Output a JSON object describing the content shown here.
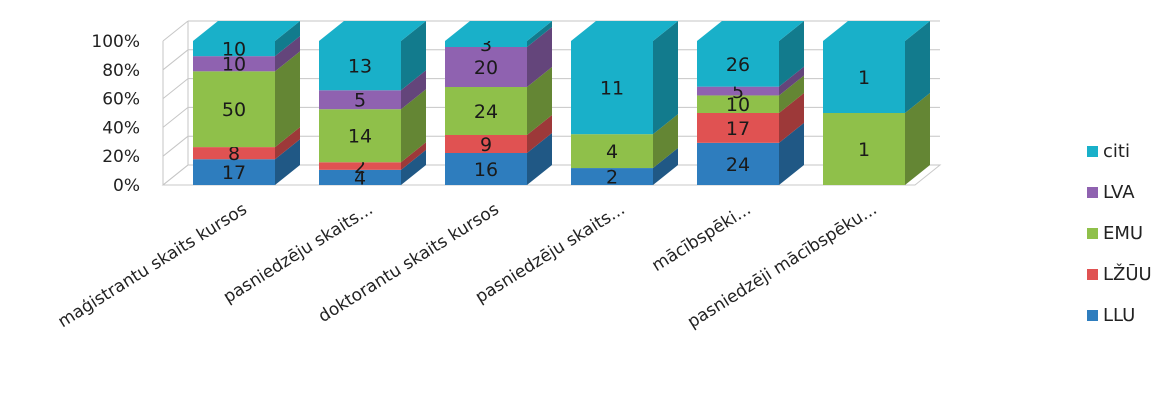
{
  "chart_data": {
    "type": "bar",
    "stacked": "percent",
    "three_d": true,
    "title": "",
    "xlabel": "",
    "ylabel": "",
    "ylim": [
      0,
      100
    ],
    "y_ticks": [
      "0%",
      "20%",
      "40%",
      "60%",
      "80%",
      "100%"
    ],
    "grid": true,
    "legend_position": "right",
    "categories": [
      "maģistrantu skaits kursos",
      "pasniedzēju skaits...",
      "doktorantu skaits kursos",
      "pasniedzēju skaits...",
      "mācībspēki...",
      "pasniedzēji mācībspēku..."
    ],
    "series": [
      {
        "name": "LLU",
        "color": "#2e7dbe",
        "values": [
          17,
          4,
          16,
          2,
          24,
          null
        ]
      },
      {
        "name": "LŽŪU",
        "color": "#e05252",
        "values": [
          8,
          2,
          9,
          null,
          17,
          null
        ]
      },
      {
        "name": "EMU",
        "color": "#8fc04a",
        "values": [
          50,
          14,
          24,
          4,
          10,
          1
        ]
      },
      {
        "name": "LVA",
        "color": "#8f62b0",
        "values": [
          10,
          5,
          20,
          null,
          5,
          null
        ]
      },
      {
        "name": "citi",
        "color": "#19b0c9",
        "values": [
          10,
          13,
          3,
          11,
          26,
          1
        ]
      }
    ],
    "legend_order": [
      "citi",
      "LVA",
      "EMU",
      "LŽŪU",
      "LLU"
    ]
  }
}
